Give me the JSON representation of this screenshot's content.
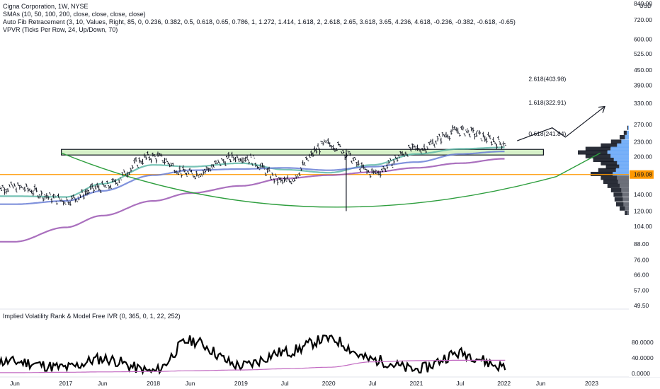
{
  "legend": {
    "title": "Cigna Corporation, 1W, NYSE",
    "sma": "SMAs (10, 50, 100, 200, close, close, close, close)",
    "fib": "Auto Fib Retracement (3, 10, Values, Right, 85, 0, 0.236, 0.382, 0.5, 0.618, 0.65, 0.786, 1, 1.272, 1.414, 1.618, 2, 2.618, 2.65, 3.618, 3.65, 4.236, 4.618, -0.236, -0.382, -0.618, -0.65)",
    "vpvr": "VPVR (Ticks Per Row, 24, Up/Down, 70)",
    "ivr": "Implied Volatility Rank & Model Free IVR (0, 365, 0, 1, 22, 252)"
  },
  "currency": "USD",
  "price_axis": {
    "scale": "log",
    "ticks": [
      "840.00",
      "720.00",
      "600.00",
      "525.00",
      "450.00",
      "390.00",
      "330.00",
      "270.00",
      "230.00",
      "200.00",
      "170.00",
      "140.00",
      "120.00",
      "104.00",
      "88.00",
      "76.00",
      "66.00",
      "57.00",
      "49.50"
    ]
  },
  "time_axis": [
    "Jun",
    "2017",
    "Jun",
    "2018",
    "Jun",
    "2019",
    "Jul",
    "2020",
    "Jul",
    "2021",
    "Jul",
    "2022",
    "Jun",
    "2023"
  ],
  "ivr_axis": [
    "80.0000",
    "40.0000",
    "0.0000"
  ],
  "chart_data": [
    {
      "type": "line",
      "name": "Cigna weekly price with moving averages",
      "y_scale": "log",
      "x": [
        "2016-06",
        "2017-01",
        "2017-06",
        "2018-01",
        "2018-06",
        "2019-01",
        "2019-07",
        "2020-01",
        "2020-07",
        "2021-01",
        "2021-07",
        "2022-01"
      ],
      "series": [
        {
          "values": [
            150,
            133,
            150,
            200,
            170,
            200,
            158,
            225,
            172,
            215,
            255,
            228
          ],
          "color": "#131722"
        },
        {
          "values": [
            138,
            137,
            155,
            185,
            182,
            188,
            177,
            172,
            185,
            205,
            215,
            218
          ],
          "color": "#5fb8a8"
        },
        {
          "values": [
            128,
            132,
            145,
            168,
            176,
            178,
            180,
            176,
            182,
            190,
            205,
            210
          ],
          "color": "#6a7fd6"
        },
        {
          "values": [
            90,
            103,
            115,
            132,
            142,
            152,
            163,
            168,
            173,
            180,
            188,
            196
          ],
          "color": "#9b57b3"
        }
      ],
      "fib_levels": [
        {
          "label": "2.618(403.98)",
          "value": 403.98
        },
        {
          "label": "1.618(322.91)",
          "value": 322.91
        },
        {
          "label": "0.618(241.84)",
          "value": 241.84
        }
      ],
      "price_marker": {
        "label": "169.08",
        "value": 169.08,
        "color": "#ff9800"
      },
      "resistance_zone": {
        "low": 203,
        "high": 214
      },
      "ylim": [
        49.5,
        840
      ]
    },
    {
      "type": "line",
      "name": "Implied Volatility Rank",
      "x": [
        "2016-06",
        "2017-01",
        "2017-06",
        "2018-01",
        "2018-06",
        "2019-01",
        "2019-07",
        "2020-01",
        "2020-07",
        "2021-01",
        "2021-07",
        "2022-01"
      ],
      "series": [
        {
          "values": [
            30,
            15,
            38,
            5,
            85,
            20,
            55,
            90,
            35,
            10,
            52,
            18
          ],
          "color": "#000000"
        },
        {
          "values": [
            2,
            3,
            4,
            5,
            7,
            9,
            12,
            16,
            30,
            33,
            34,
            34
          ],
          "color": "#c26ac2"
        }
      ],
      "ylim": [
        0,
        100
      ]
    }
  ]
}
